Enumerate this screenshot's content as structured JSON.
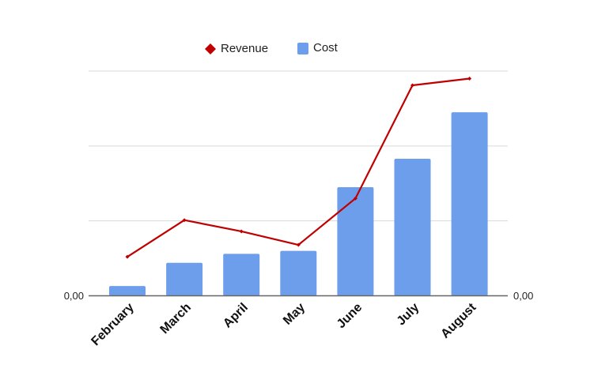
{
  "chart_data": {
    "type": "bar",
    "categories": [
      "February",
      "March",
      "April",
      "May",
      "June",
      "July",
      "August"
    ],
    "series": [
      {
        "name": "Cost",
        "type": "bar",
        "color": "#6d9eeb",
        "axis": "left",
        "values": [
          0.13,
          0.44,
          0.56,
          0.6,
          1.45,
          1.83,
          2.45
        ]
      },
      {
        "name": "Revenue",
        "type": "line",
        "color": "#c00000",
        "marker": "diamond",
        "axis": "right",
        "values": [
          0.52,
          1.01,
          0.86,
          0.68,
          1.3,
          2.81,
          2.9
        ]
      }
    ],
    "left_axis": {
      "tick_labels": [
        "0,00"
      ]
    },
    "right_axis": {
      "tick_labels": [
        "0,00"
      ]
    },
    "ylim": [
      0,
      3
    ],
    "grid": true,
    "legend": {
      "placement": "top",
      "entries": [
        "Revenue",
        "Cost"
      ]
    },
    "title": "",
    "xlabel": "",
    "ylabel": ""
  }
}
